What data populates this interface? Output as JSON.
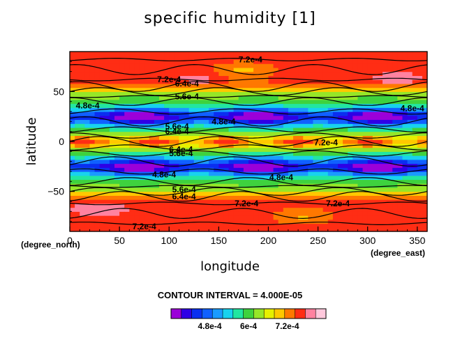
{
  "chart_data": {
    "type": "heatmap",
    "title": "specific humidity [1]",
    "xlabel": "longitude",
    "ylabel": "latitude",
    "x_unit": "(degree_east)",
    "y_unit": "(degree_north)",
    "xlim": [
      0,
      360
    ],
    "ylim": [
      -90,
      90
    ],
    "x_ticks": [
      "0",
      "50",
      "100",
      "150",
      "200",
      "250",
      "300",
      "350"
    ],
    "y_ticks": [
      "-50",
      "0",
      "50"
    ],
    "contour_interval_text": "CONTOUR INTERVAL = 4.000E-05",
    "colorbar_labels": [
      "4.8e-4",
      "6e-4",
      "7.2e-4"
    ],
    "colorbar_range": [
      0.00036,
      0.00084
    ],
    "contour_labels": [
      {
        "text": "7.2e-4",
        "x": 182,
        "y": 82
      },
      {
        "text": "7.2e-4",
        "x": 100,
        "y": 62
      },
      {
        "text": "6.4e-4",
        "x": 118,
        "y": 58
      },
      {
        "text": "5.6e-4",
        "x": 118,
        "y": 45
      },
      {
        "text": "4.8e-4",
        "x": 18,
        "y": 36
      },
      {
        "text": "4.8e-4",
        "x": 345,
        "y": 33
      },
      {
        "text": "4.8e-4",
        "x": 155,
        "y": 20
      },
      {
        "text": "5.6e-4",
        "x": 108,
        "y": 15
      },
      {
        "text": "6.4e-4",
        "x": 108,
        "y": 10
      },
      {
        "text": "7.2e-4",
        "x": 258,
        "y": -1
      },
      {
        "text": "6.4e-4",
        "x": 112,
        "y": -8
      },
      {
        "text": "5.6e-4",
        "x": 112,
        "y": -12
      },
      {
        "text": "4.8e-4",
        "x": 95,
        "y": -33
      },
      {
        "text": "4.8e-4",
        "x": 213,
        "y": -36
      },
      {
        "text": "5.6e-4",
        "x": 115,
        "y": -48
      },
      {
        "text": "6.4e-4",
        "x": 115,
        "y": -55
      },
      {
        "text": "7.2e-4",
        "x": 178,
        "y": -62
      },
      {
        "text": "7.2e-4",
        "x": 270,
        "y": -62
      },
      {
        "text": "7.2e-4",
        "x": 75,
        "y": -85
      }
    ]
  },
  "colors": [
    "#9b00d9",
    "#2e00e6",
    "#0a2ff0",
    "#1060ff",
    "#1a9bff",
    "#18d2ee",
    "#22e6a0",
    "#3ed23e",
    "#96e628",
    "#e6f000",
    "#ffc800",
    "#ff7800",
    "#ff2d14",
    "#ff82a0",
    "#ffc8dc"
  ]
}
